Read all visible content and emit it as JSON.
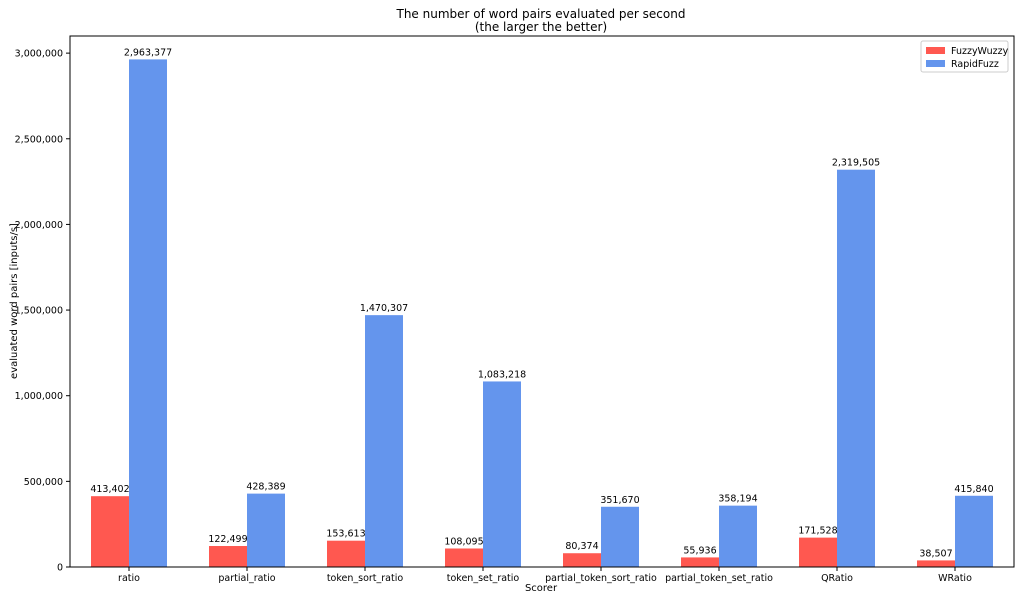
{
  "chart_data": {
    "type": "bar",
    "title": "The number of word pairs evaluated per second",
    "subtitle": "(the larger the better)",
    "xlabel": "Scorer",
    "ylabel": "evaluated word pairs [inputs/s]",
    "ylim": [
      0,
      3100000
    ],
    "yticks": [
      0,
      500000,
      1000000,
      1500000,
      2000000,
      2500000,
      3000000
    ],
    "ytick_labels": [
      "0",
      "500,000",
      "1,000,000",
      "1,500,000",
      "2,000,000",
      "2,500,000",
      "3,000,000"
    ],
    "categories": [
      "ratio",
      "partial_ratio",
      "token_sort_ratio",
      "token_set_ratio",
      "partial_token_sort_ratio",
      "partial_token_set_ratio",
      "QRatio",
      "WRatio"
    ],
    "series": [
      {
        "name": "FuzzyWuzzy",
        "color": "#FF5850",
        "values": [
          413402,
          122499,
          153613,
          108095,
          80374,
          55936,
          171528,
          38507
        ],
        "labels": [
          "413,402",
          "122,499",
          "153,613",
          "108,095",
          "80,374",
          "55,936",
          "171,528",
          "38,507"
        ]
      },
      {
        "name": "RapidFuzz",
        "color": "#6495ED",
        "values": [
          2963377,
          428389,
          1470307,
          1083218,
          351670,
          358194,
          2319505,
          415840
        ],
        "labels": [
          "2,963,377",
          "428,389",
          "1,470,307",
          "1,083,218",
          "351,670",
          "358,194",
          "2,319,505",
          "415,840"
        ]
      }
    ],
    "legend_position": "top-right",
    "grid": false
  }
}
